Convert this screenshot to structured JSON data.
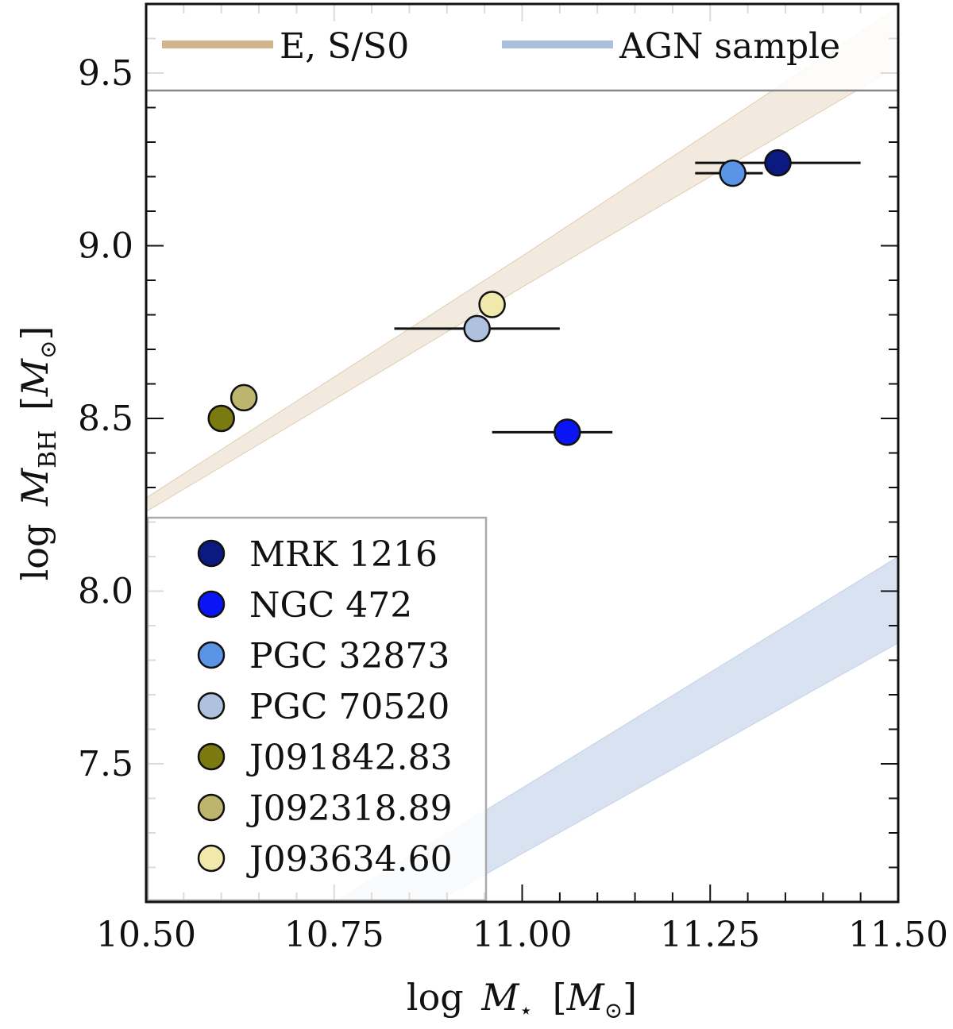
{
  "chart_data": {
    "type": "scatter",
    "title": "",
    "xlabel": {
      "prefix": "log",
      "symbol": "M",
      "subscript": "⋆",
      "unit_open": "[",
      "unit_symbol": "M",
      "unit_subscript": "⊙",
      "unit_close": "]"
    },
    "ylabel": {
      "prefix": "log",
      "symbol": "M",
      "subscript": "BH",
      "unit_open": "[",
      "unit_symbol": "M",
      "unit_subscript": "⊙",
      "unit_close": "]"
    },
    "xlim": [
      10.5,
      11.5
    ],
    "ylim": [
      7.1,
      9.7
    ],
    "x_ticks_major": [
      10.5,
      10.75,
      11.0,
      11.25,
      11.5
    ],
    "x_tick_labels": [
      "10.50",
      "10.75",
      "11.00",
      "11.25",
      "11.50"
    ],
    "x_ticks_minor": [
      10.55,
      10.6,
      10.65,
      10.7,
      10.8,
      10.85,
      10.9,
      10.95,
      11.05,
      11.1,
      11.15,
      11.2,
      11.3,
      11.35,
      11.4,
      11.45
    ],
    "y_ticks_major": [
      7.5,
      8.0,
      8.5,
      9.0,
      9.5
    ],
    "y_tick_labels": [
      "7.5",
      "8.0",
      "8.5",
      "9.0",
      "9.5"
    ],
    "y_ticks_minor": [
      7.2,
      7.3,
      7.4,
      7.6,
      7.7,
      7.8,
      7.9,
      8.1,
      8.2,
      8.3,
      8.4,
      8.6,
      8.7,
      8.8,
      8.9,
      9.1,
      9.2,
      9.3,
      9.4,
      9.6
    ],
    "bands": [
      {
        "name": "E, S/S0",
        "color": "#d2b48c",
        "opacity": 0.28,
        "upper": [
          [
            10.5,
            8.27
          ],
          [
            11.0,
            8.97
          ],
          [
            11.5,
            9.69
          ]
        ],
        "lower": [
          [
            10.5,
            8.23
          ],
          [
            11.0,
            8.88
          ],
          [
            11.5,
            9.52
          ]
        ]
      },
      {
        "name": "AGN sample",
        "color": "#aabfdd",
        "opacity": 0.45,
        "upper": [
          [
            10.5,
            6.77
          ],
          [
            11.0,
            7.43
          ],
          [
            11.5,
            8.1
          ]
        ],
        "lower": [
          [
            10.5,
            6.62
          ],
          [
            11.0,
            7.24
          ],
          [
            11.5,
            7.85
          ]
        ]
      }
    ],
    "top_legend": [
      {
        "label": "E, S/S0",
        "color": "#d2b48c"
      },
      {
        "label": "AGN sample",
        "color": "#aabfdd"
      }
    ],
    "series": [
      {
        "name": "MRK 1216",
        "x": 11.34,
        "y": 9.24,
        "xerr": [
          11.23,
          11.45
        ],
        "color": "#0a1a80"
      },
      {
        "name": "NGC 472",
        "x": 11.06,
        "y": 8.46,
        "xerr": [
          10.96,
          11.12
        ],
        "color": "#0a14f5"
      },
      {
        "name": "PGC 32873",
        "x": 11.28,
        "y": 9.21,
        "xerr": [
          11.23,
          11.32
        ],
        "color": "#5b93e6"
      },
      {
        "name": "PGC 70520",
        "x": 10.94,
        "y": 8.76,
        "xerr": [
          10.83,
          11.05
        ],
        "color": "#aec2e0"
      },
      {
        "name": "J091842.83",
        "x": 10.6,
        "y": 8.5,
        "xerr": null,
        "color": "#7a7a10"
      },
      {
        "name": "J092318.89",
        "x": 10.63,
        "y": 8.56,
        "xerr": null,
        "color": "#bdb56e"
      },
      {
        "name": "J093634.60",
        "x": 10.96,
        "y": 8.83,
        "xerr": null,
        "color": "#f0e9ab"
      }
    ],
    "legend_position": "lower-left"
  }
}
